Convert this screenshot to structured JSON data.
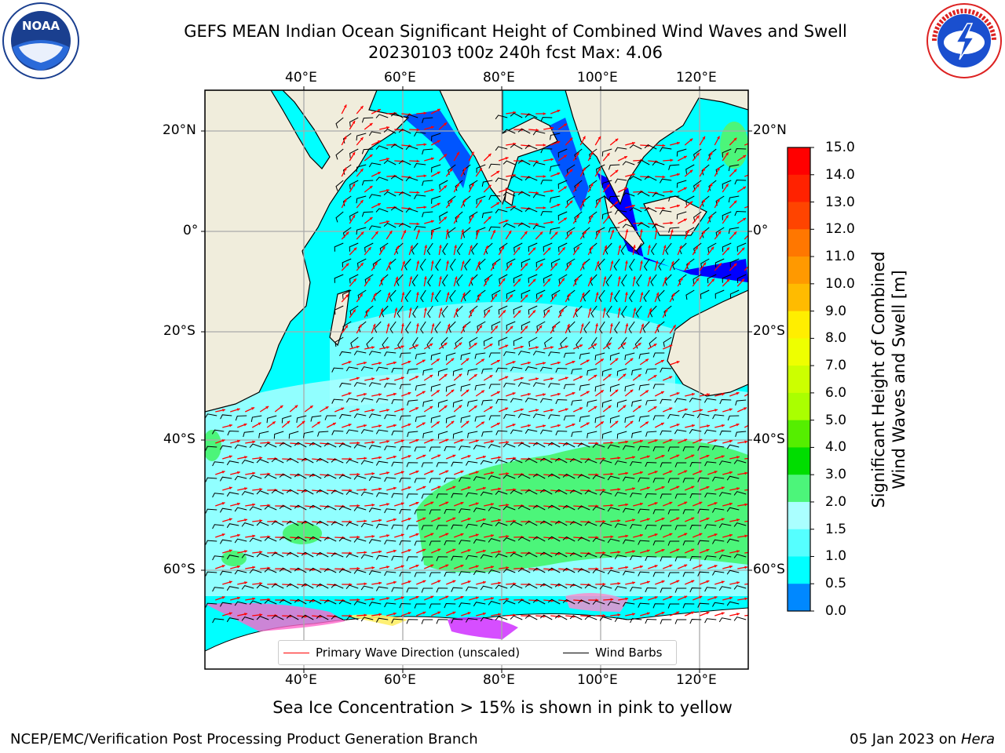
{
  "title_line1": "GEFS MEAN Indian Ocean Significant Height of Combined Wind Waves and Swell",
  "title_line2": "20230103 t00z 240h fcst   Max: 4.06",
  "noaa_logo": {
    "center_text": "NOAA",
    "ring_text": "NATIONAL OCEANIC AND ATMOSPHERIC ADMINISTRATION · U.S. DEPARTMENT OF COMMERCE"
  },
  "nws_logo": {
    "ring_text": "NATIONAL WEATHER SERVICE"
  },
  "map": {
    "lon_labels": [
      "40°E",
      "60°E",
      "80°E",
      "100°E",
      "120°E"
    ],
    "lat_labels": [
      "20°N",
      "0°",
      "20°S",
      "40°S",
      "60°S"
    ],
    "legend": {
      "wave_direction": "Primary Wave Direction (unscaled)",
      "wind_barbs": "Wind Barbs",
      "wave_color": "#ff0000",
      "barb_color": "#000000"
    },
    "colors": {
      "land": "#f0eddc",
      "ocean_low": "#00ffff",
      "ocean_mid": "#aaffff",
      "ocean_high": "#4cf57a",
      "shallow": "#0000ff",
      "ice": "#ff66cc"
    }
  },
  "colorbar": {
    "label_line1": "Significant Height of Combined",
    "label_line2": "Wind Waves and Swell [m]",
    "ticks": [
      "15.0",
      "14.0",
      "13.0",
      "12.0",
      "11.0",
      "10.0",
      "9.0",
      "8.0",
      "7.0",
      "6.0",
      "5.0",
      "4.0",
      "3.0",
      "2.0",
      "1.5",
      "1.0",
      "0.5",
      "0.0"
    ],
    "colors": [
      "#ff0000",
      "#ff2200",
      "#ff4400",
      "#ff7700",
      "#ff9900",
      "#ffbb00",
      "#ffee00",
      "#eeff00",
      "#ccff00",
      "#aaff00",
      "#55ee00",
      "#00dd00",
      "#4cf57a",
      "#aaffff",
      "#55ffff",
      "#00ffff",
      "#0088ff",
      "#0000ff"
    ]
  },
  "sea_ice_note": "Sea Ice Concentration > 15% is shown in pink to yellow",
  "footer_left": "NCEP/EMC/Verification Post Processing Product Generation Branch",
  "footer_right_date": "05 Jan 2023 on ",
  "footer_right_host": "Hera"
}
